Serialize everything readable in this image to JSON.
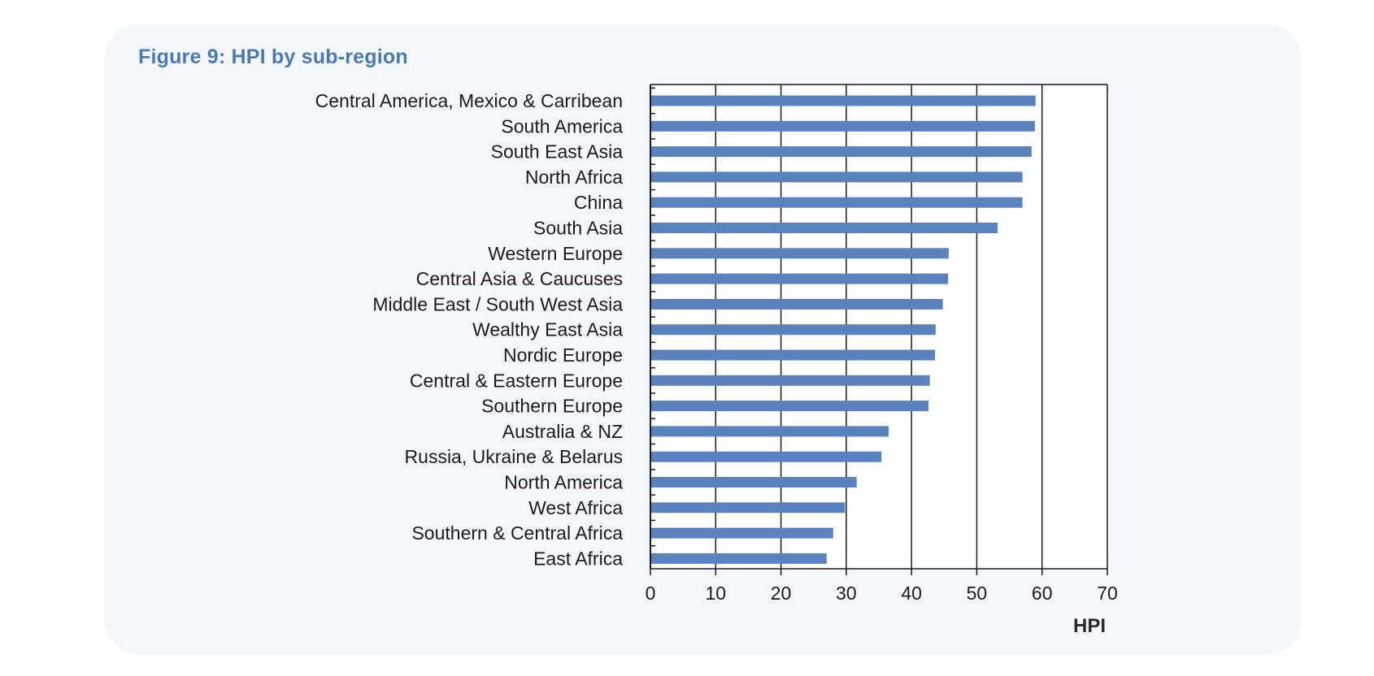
{
  "figure": {
    "title": "Figure 9: HPI by sub-region"
  },
  "colors": {
    "bar": "#5a82be",
    "title": "#4a7ab5",
    "panel": "#f4f8fc"
  },
  "chart_data": {
    "type": "bar",
    "orientation": "horizontal",
    "title": "Figure 9: HPI by sub-region",
    "xlabel": "HPI",
    "ylabel": "",
    "xlim": [
      0,
      70
    ],
    "xticks": [
      0,
      10,
      20,
      30,
      40,
      50,
      60,
      70
    ],
    "grid": true,
    "categories": [
      "Central America, Mexico & Carribean",
      "South America",
      "South East Asia",
      "North Africa",
      "China",
      "South Asia",
      "Western Europe",
      "Central Asia & Caucuses",
      "Middle East / South West Asia",
      "Wealthy East Asia",
      "Nordic Europe",
      "Central & Eastern Europe",
      "Southern Europe",
      "Australia & NZ",
      "Russia, Ukraine & Belarus",
      "North America",
      "West Africa",
      "Southern & Central Africa",
      "East Africa"
    ],
    "values": [
      59.0,
      58.9,
      58.4,
      57.0,
      57.0,
      53.2,
      45.7,
      45.6,
      44.8,
      43.7,
      43.6,
      42.8,
      42.6,
      36.5,
      35.4,
      31.6,
      29.8,
      28.0,
      27.0
    ]
  }
}
